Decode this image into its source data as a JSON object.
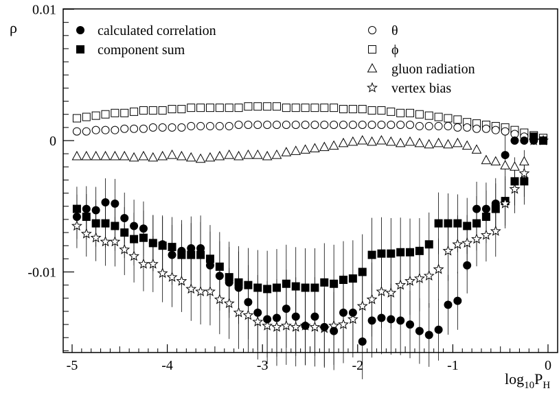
{
  "chart_data": {
    "type": "scatter",
    "xlabel": "log",
    "xlabel_sub": "10",
    "xlabel_tail": "P",
    "xlabel_tail_sub": "H",
    "ylabel": "ρ",
    "xlim": [
      -5,
      0.05
    ],
    "ylim": [
      -0.016,
      0.01
    ],
    "x_ticks": [
      -5,
      -4,
      -3,
      -2,
      -1,
      0
    ],
    "x_tick_labels": [
      "-5",
      "-4",
      "-3",
      "-2",
      "-1",
      "0"
    ],
    "y_ticks": [
      0.01,
      0,
      -0.01
    ],
    "y_tick_labels": [
      "0.01",
      "0",
      "-0.01"
    ],
    "legend_left": [
      {
        "series": "calculated",
        "label": "calculated correlation"
      },
      {
        "series": "component",
        "label": "component sum"
      }
    ],
    "legend_right": [
      {
        "series": "theta",
        "label": "θ"
      },
      {
        "series": "phi",
        "label": "ϕ"
      },
      {
        "series": "gluon",
        "label": "gluon radiation"
      },
      {
        "series": "vertex",
        "label": "vertex bias"
      }
    ],
    "series": [
      {
        "key": "phi",
        "marker": "open-square",
        "x": [
          -4.95,
          -4.85,
          -4.75,
          -4.65,
          -4.55,
          -4.45,
          -4.35,
          -4.25,
          -4.15,
          -4.05,
          -3.95,
          -3.85,
          -3.75,
          -3.65,
          -3.55,
          -3.45,
          -3.35,
          -3.25,
          -3.15,
          -3.05,
          -2.95,
          -2.85,
          -2.75,
          -2.65,
          -2.55,
          -2.45,
          -2.35,
          -2.25,
          -2.15,
          -2.05,
          -1.95,
          -1.85,
          -1.75,
          -1.65,
          -1.55,
          -1.45,
          -1.35,
          -1.25,
          -1.15,
          -1.05,
          -0.95,
          -0.85,
          -0.75,
          -0.65,
          -0.55,
          -0.45,
          -0.35,
          -0.25,
          -0.15,
          -0.05
        ],
        "y": [
          0.0017,
          0.0018,
          0.0019,
          0.002,
          0.0021,
          0.0021,
          0.0022,
          0.0023,
          0.0023,
          0.0023,
          0.0024,
          0.0024,
          0.0025,
          0.0025,
          0.0025,
          0.0025,
          0.0025,
          0.0025,
          0.0026,
          0.0026,
          0.0026,
          0.0026,
          0.0025,
          0.0025,
          0.0025,
          0.0025,
          0.0025,
          0.0025,
          0.0024,
          0.0024,
          0.0024,
          0.0023,
          0.0023,
          0.0022,
          0.0021,
          0.0021,
          0.002,
          0.0019,
          0.0018,
          0.0017,
          0.0016,
          0.0014,
          0.0013,
          0.0012,
          0.0011,
          0.001,
          0.0008,
          0.0006,
          0.0004,
          0.0002
        ]
      },
      {
        "key": "theta",
        "marker": "open-circle",
        "x": [
          -4.95,
          -4.85,
          -4.75,
          -4.65,
          -4.55,
          -4.45,
          -4.35,
          -4.25,
          -4.15,
          -4.05,
          -3.95,
          -3.85,
          -3.75,
          -3.65,
          -3.55,
          -3.45,
          -3.35,
          -3.25,
          -3.15,
          -3.05,
          -2.95,
          -2.85,
          -2.75,
          -2.65,
          -2.55,
          -2.45,
          -2.35,
          -2.25,
          -2.15,
          -2.05,
          -1.95,
          -1.85,
          -1.75,
          -1.65,
          -1.55,
          -1.45,
          -1.35,
          -1.25,
          -1.15,
          -1.05,
          -0.95,
          -0.85,
          -0.75,
          -0.65,
          -0.55,
          -0.45,
          -0.35,
          -0.25,
          -0.15
        ],
        "y": [
          0.0007,
          0.0007,
          0.0008,
          0.0008,
          0.0008,
          0.0009,
          0.0009,
          0.0009,
          0.001,
          0.001,
          0.001,
          0.001,
          0.0011,
          0.0011,
          0.0011,
          0.0011,
          0.0011,
          0.0012,
          0.0012,
          0.0012,
          0.0012,
          0.0012,
          0.0012,
          0.0012,
          0.0012,
          0.0012,
          0.0012,
          0.0012,
          0.0012,
          0.0012,
          0.0012,
          0.0012,
          0.0012,
          0.0012,
          0.0012,
          0.0012,
          0.0011,
          0.0011,
          0.0011,
          0.0011,
          0.001,
          0.001,
          0.0009,
          0.0009,
          0.0008,
          0.0007,
          0.0005,
          0.0003,
          0.0001
        ]
      },
      {
        "key": "gluon",
        "marker": "open-triangle",
        "x": [
          -4.95,
          -4.85,
          -4.75,
          -4.65,
          -4.55,
          -4.45,
          -4.35,
          -4.25,
          -4.15,
          -4.05,
          -3.95,
          -3.85,
          -3.75,
          -3.65,
          -3.55,
          -3.45,
          -3.35,
          -3.25,
          -3.15,
          -3.05,
          -2.95,
          -2.85,
          -2.75,
          -2.65,
          -2.55,
          -2.45,
          -2.35,
          -2.25,
          -2.15,
          -2.05,
          -1.95,
          -1.85,
          -1.75,
          -1.65,
          -1.55,
          -1.45,
          -1.35,
          -1.25,
          -1.15,
          -1.05,
          -0.95,
          -0.85,
          -0.75,
          -0.65,
          -0.55,
          -0.45,
          -0.35,
          -0.25
        ],
        "y": [
          -0.0012,
          -0.0012,
          -0.0012,
          -0.0012,
          -0.0012,
          -0.0012,
          -0.0013,
          -0.0012,
          -0.0013,
          -0.0012,
          -0.0011,
          -0.0012,
          -0.0013,
          -0.0014,
          -0.0013,
          -0.0012,
          -0.0011,
          -0.0012,
          -0.0011,
          -0.0011,
          -0.0012,
          -0.0011,
          -0.0009,
          -0.0008,
          -0.0007,
          -0.0006,
          -0.0005,
          -0.0004,
          -0.0002,
          -0.0001,
          0.0,
          -0.0001,
          0.0,
          -0.0001,
          -0.0002,
          -0.0001,
          -0.0002,
          -0.0003,
          -0.0002,
          -0.0003,
          -0.0002,
          -0.0004,
          -0.0007,
          -0.0015,
          -0.0016,
          -0.0019,
          -0.002,
          -0.0016
        ]
      },
      {
        "key": "calculated",
        "marker": "filled-circle",
        "x": [
          -4.95,
          -4.85,
          -4.75,
          -4.65,
          -4.55,
          -4.45,
          -4.35,
          -4.25,
          -4.15,
          -4.05,
          -3.95,
          -3.85,
          -3.75,
          -3.65,
          -3.55,
          -3.45,
          -3.35,
          -3.25,
          -3.15,
          -3.05,
          -2.95,
          -2.85,
          -2.75,
          -2.65,
          -2.55,
          -2.45,
          -2.35,
          -2.25,
          -2.15,
          -2.05,
          -1.95,
          -1.85,
          -1.75,
          -1.65,
          -1.55,
          -1.45,
          -1.35,
          -1.25,
          -1.15,
          -1.05,
          -0.95,
          -0.85,
          -0.75,
          -0.65,
          -0.55,
          -0.45,
          -0.35,
          -0.25,
          -0.15,
          -0.05
        ],
        "y": [
          -0.0058,
          -0.0052,
          -0.0053,
          -0.0047,
          -0.0048,
          -0.0059,
          -0.0065,
          -0.0067,
          -0.0078,
          -0.0079,
          -0.0087,
          -0.0084,
          -0.0082,
          -0.0082,
          -0.0095,
          -0.0103,
          -0.0108,
          -0.0112,
          -0.0123,
          -0.0131,
          -0.0136,
          -0.0135,
          -0.0128,
          -0.0134,
          -0.0141,
          -0.0134,
          -0.0142,
          -0.0145,
          -0.0131,
          -0.0131,
          -0.0153,
          -0.0137,
          -0.0135,
          -0.0136,
          -0.0137,
          -0.014,
          -0.0145,
          -0.0148,
          -0.0144,
          -0.0125,
          -0.0122,
          -0.0095,
          -0.0052,
          -0.0052,
          -0.0048,
          -0.0011,
          -0.0,
          0.0,
          0.0,
          0.0
        ]
      },
      {
        "key": "component",
        "marker": "filled-square",
        "x": [
          -4.95,
          -4.85,
          -4.75,
          -4.65,
          -4.55,
          -4.45,
          -4.35,
          -4.25,
          -4.15,
          -4.05,
          -3.95,
          -3.85,
          -3.75,
          -3.65,
          -3.55,
          -3.45,
          -3.35,
          -3.25,
          -3.15,
          -3.05,
          -2.95,
          -2.85,
          -2.75,
          -2.65,
          -2.55,
          -2.45,
          -2.35,
          -2.25,
          -2.15,
          -2.05,
          -1.95,
          -1.85,
          -1.75,
          -1.65,
          -1.55,
          -1.45,
          -1.35,
          -1.25,
          -1.15,
          -1.05,
          -0.95,
          -0.85,
          -0.75,
          -0.65,
          -0.55,
          -0.45,
          -0.35,
          -0.25,
          -0.15,
          -0.05
        ],
        "y": [
          -0.0052,
          -0.0058,
          -0.0063,
          -0.0063,
          -0.0065,
          -0.007,
          -0.0075,
          -0.0074,
          -0.0078,
          -0.008,
          -0.0081,
          -0.0087,
          -0.0087,
          -0.0087,
          -0.009,
          -0.0096,
          -0.0104,
          -0.0108,
          -0.011,
          -0.0112,
          -0.0113,
          -0.0112,
          -0.0109,
          -0.0111,
          -0.0112,
          -0.0112,
          -0.0108,
          -0.0109,
          -0.0106,
          -0.0105,
          -0.01,
          -0.0087,
          -0.0086,
          -0.0086,
          -0.0085,
          -0.0085,
          -0.0084,
          -0.0079,
          -0.0063,
          -0.0063,
          -0.0063,
          -0.0065,
          -0.0063,
          -0.0058,
          -0.0052,
          -0.0046,
          -0.0031,
          -0.0031,
          0.0003,
          0.0
        ]
      },
      {
        "key": "vertex",
        "marker": "open-star",
        "x": [
          -4.95,
          -4.85,
          -4.75,
          -4.65,
          -4.55,
          -4.45,
          -4.35,
          -4.25,
          -4.15,
          -4.05,
          -3.95,
          -3.85,
          -3.75,
          -3.65,
          -3.55,
          -3.45,
          -3.35,
          -3.25,
          -3.15,
          -3.05,
          -2.95,
          -2.85,
          -2.75,
          -2.65,
          -2.55,
          -2.45,
          -2.35,
          -2.25,
          -2.15,
          -2.05,
          -1.95,
          -1.85,
          -1.75,
          -1.65,
          -1.55,
          -1.45,
          -1.35,
          -1.25,
          -1.15,
          -1.05,
          -0.95,
          -0.85,
          -0.75,
          -0.65,
          -0.55,
          -0.45,
          -0.35,
          -0.25,
          -0.15,
          -0.05
        ],
        "y": [
          -0.0065,
          -0.0071,
          -0.0074,
          -0.0077,
          -0.0077,
          -0.0083,
          -0.0088,
          -0.0094,
          -0.0094,
          -0.0101,
          -0.0104,
          -0.0107,
          -0.0113,
          -0.0115,
          -0.0115,
          -0.0121,
          -0.0124,
          -0.0131,
          -0.0133,
          -0.0138,
          -0.0141,
          -0.0142,
          -0.0141,
          -0.0142,
          -0.0141,
          -0.0142,
          -0.0143,
          -0.0141,
          -0.014,
          -0.0136,
          -0.0126,
          -0.0121,
          -0.0115,
          -0.0116,
          -0.011,
          -0.0107,
          -0.0105,
          -0.0103,
          -0.0098,
          -0.0084,
          -0.0079,
          -0.0078,
          -0.0075,
          -0.0072,
          -0.0069,
          -0.0048,
          -0.0037,
          -0.0025,
          -0.0,
          0.0
        ]
      }
    ]
  }
}
